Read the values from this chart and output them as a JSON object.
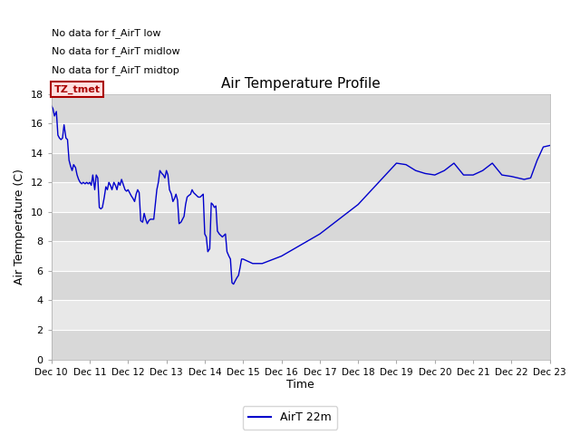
{
  "title": "Air Temperature Profile",
  "xlabel": "Time",
  "ylabel": "Air Termperature (C)",
  "legend_label": "AirT 22m",
  "line_color": "#0000cc",
  "background_color": "#ffffff",
  "plot_bg_color": "#e8e8e8",
  "plot_bg_stripe_color": "#d0d0d0",
  "annotations": [
    "No data for f_AirT low",
    "No data for f_AirT midlow",
    "No data for f_AirT midtop"
  ],
  "annotation_box_label": "TZ_tmet",
  "annotation_box_facecolor": "#ffe0e0",
  "annotation_box_edgecolor": "#aa0000",
  "annotation_box_textcolor": "#aa0000",
  "ylim": [
    0,
    18
  ],
  "yticks": [
    0,
    2,
    4,
    6,
    8,
    10,
    12,
    14,
    16,
    18
  ],
  "x_tick_labels": [
    "Dec 10",
    "Dec 11",
    "Dec 12",
    "Dec 13",
    "Dec 14",
    "Dec 15",
    "Dec 16",
    "Dec 17",
    "Dec 18",
    "Dec 19",
    "Dec 20",
    "Dec 21",
    "Dec 22",
    "Dec 23"
  ],
  "time_x": [
    0.0,
    0.04,
    0.08,
    0.13,
    0.17,
    0.21,
    0.25,
    0.29,
    0.33,
    0.38,
    0.42,
    0.46,
    0.5,
    0.54,
    0.58,
    0.63,
    0.67,
    0.71,
    0.75,
    0.79,
    0.83,
    0.88,
    0.92,
    0.96,
    1.0,
    1.04,
    1.08,
    1.13,
    1.17,
    1.21,
    1.25,
    1.29,
    1.33,
    1.38,
    1.42,
    1.46,
    1.5,
    1.54,
    1.58,
    1.63,
    1.67,
    1.71,
    1.75,
    1.79,
    1.83,
    1.88,
    1.92,
    1.96,
    2.0,
    2.04,
    2.08,
    2.13,
    2.17,
    2.21,
    2.25,
    2.29,
    2.33,
    2.38,
    2.42,
    2.46,
    2.5,
    2.54,
    2.58,
    2.63,
    2.67,
    2.71,
    2.75,
    2.79,
    2.83,
    2.88,
    2.92,
    2.96,
    3.0,
    3.04,
    3.08,
    3.13,
    3.17,
    3.21,
    3.25,
    3.29,
    3.33,
    3.38,
    3.42,
    3.46,
    3.5,
    3.54,
    3.58,
    3.63,
    3.67,
    3.71,
    3.75,
    3.79,
    3.83,
    3.88,
    3.92,
    3.96,
    4.0,
    4.04,
    4.08,
    4.13,
    4.17,
    4.21,
    4.25,
    4.29,
    4.33,
    4.38,
    4.42,
    4.46,
    4.5,
    4.54,
    4.58,
    4.63,
    4.67,
    4.71,
    4.75,
    4.79,
    4.83,
    4.88,
    4.92,
    4.96,
    5.0,
    5.25,
    5.5,
    6.0,
    7.0,
    8.0,
    9.0,
    9.25,
    9.5,
    9.75,
    10.0,
    10.25,
    10.5,
    10.75,
    11.0,
    11.25,
    11.5,
    11.75,
    12.0,
    12.17,
    12.33,
    12.5,
    12.67,
    12.83,
    13.0
  ],
  "temp_y": [
    17.2,
    17.0,
    16.5,
    16.8,
    15.2,
    15.0,
    14.9,
    15.0,
    15.9,
    15.0,
    14.9,
    13.5,
    13.1,
    12.8,
    13.2,
    13.0,
    12.5,
    12.2,
    12.0,
    11.9,
    12.0,
    11.9,
    12.0,
    11.9,
    12.0,
    11.8,
    12.5,
    11.5,
    12.5,
    12.3,
    10.3,
    10.2,
    10.3,
    11.0,
    11.7,
    11.5,
    12.0,
    11.8,
    11.5,
    12.0,
    11.8,
    11.5,
    12.0,
    11.8,
    12.2,
    11.8,
    11.5,
    11.4,
    11.5,
    11.3,
    11.1,
    10.9,
    10.7,
    11.2,
    11.5,
    11.3,
    9.4,
    9.3,
    9.9,
    9.5,
    9.2,
    9.4,
    9.5,
    9.5,
    9.5,
    10.5,
    11.5,
    12.0,
    12.8,
    12.6,
    12.5,
    12.3,
    12.8,
    12.5,
    11.5,
    11.2,
    10.7,
    10.9,
    11.2,
    10.8,
    9.2,
    9.3,
    9.5,
    9.7,
    10.5,
    11.0,
    11.1,
    11.2,
    11.5,
    11.3,
    11.2,
    11.1,
    11.0,
    11.0,
    11.1,
    11.2,
    8.5,
    8.3,
    7.3,
    7.5,
    10.6,
    10.5,
    10.3,
    10.4,
    8.7,
    8.5,
    8.4,
    8.3,
    8.4,
    8.5,
    7.3,
    7.0,
    6.8,
    5.2,
    5.1,
    5.3,
    5.5,
    5.7,
    6.2,
    6.8,
    6.8,
    6.5,
    6.5,
    7.0,
    8.5,
    10.5,
    13.3,
    13.2,
    12.8,
    12.6,
    12.5,
    12.8,
    13.3,
    12.5,
    12.5,
    12.8,
    13.3,
    12.5,
    12.4,
    12.3,
    12.2,
    12.3,
    13.5,
    14.4,
    14.5
  ]
}
